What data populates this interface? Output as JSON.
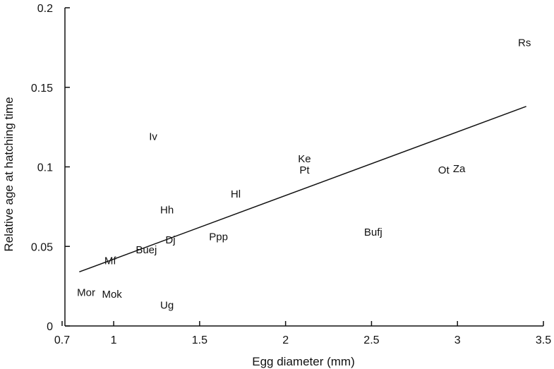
{
  "chart_data": {
    "type": "scatter",
    "xlabel": "Egg diameter (mm)",
    "ylabel": "Relative age at hatching time",
    "xlim": [
      0.7,
      3.5
    ],
    "ylim": [
      0,
      0.2
    ],
    "xticks": [
      0.7,
      1,
      1.5,
      2,
      2.5,
      3,
      3.5
    ],
    "xtick_labels": [
      "0.7",
      "1",
      "1.5",
      "2",
      "2.5",
      "3",
      "3.5"
    ],
    "yticks": [
      0,
      0.05,
      0.1,
      0.15,
      0.2
    ],
    "ytick_labels": [
      "0",
      "0.05",
      "0.1",
      "0.15",
      "0.2"
    ],
    "grid": false,
    "points": [
      {
        "label": "Rs",
        "x": 3.39,
        "y": 0.178
      },
      {
        "label": "Iv",
        "x": 1.23,
        "y": 0.119
      },
      {
        "label": "Ke",
        "x": 2.11,
        "y": 0.105
      },
      {
        "label": "Pt",
        "x": 2.11,
        "y": 0.098
      },
      {
        "label": "Ot",
        "x": 2.92,
        "y": 0.098
      },
      {
        "label": "Za",
        "x": 3.01,
        "y": 0.099
      },
      {
        "label": "Hl",
        "x": 1.71,
        "y": 0.083
      },
      {
        "label": "Hh",
        "x": 1.31,
        "y": 0.073
      },
      {
        "label": "Bufj",
        "x": 2.51,
        "y": 0.059
      },
      {
        "label": "Ppp",
        "x": 1.61,
        "y": 0.056
      },
      {
        "label": "Dj",
        "x": 1.33,
        "y": 0.054
      },
      {
        "label": "Buej",
        "x": 1.19,
        "y": 0.048
      },
      {
        "label": "Mf",
        "x": 0.98,
        "y": 0.041
      },
      {
        "label": "Mor",
        "x": 0.84,
        "y": 0.021
      },
      {
        "label": "Mok",
        "x": 0.99,
        "y": 0.02
      },
      {
        "label": "Ug",
        "x": 1.31,
        "y": 0.013
      }
    ],
    "trendline": {
      "x": [
        0.8,
        3.4
      ],
      "y": [
        0.034,
        0.138
      ]
    }
  }
}
